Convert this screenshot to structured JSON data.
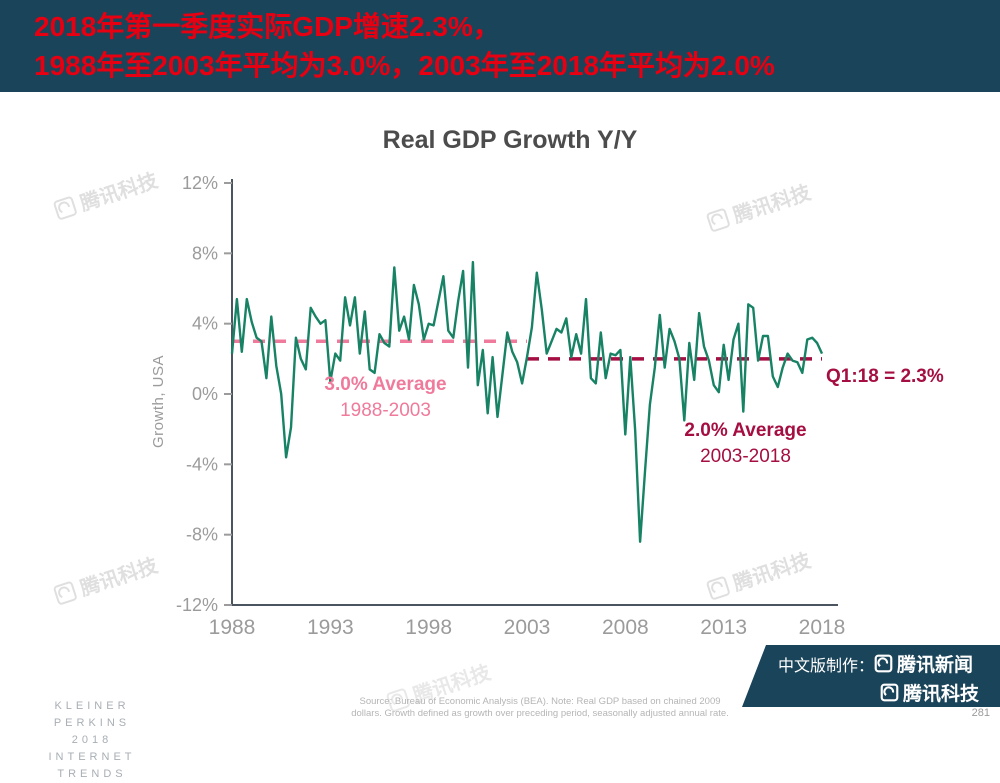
{
  "banner": {
    "line1": "2018年第一季度实际GDP增速2.3%，",
    "line2": "1988年至2003年平均为3.0%，2003年至2018年平均为2.0%"
  },
  "chart": {
    "title": "Real GDP Growth Y/Y",
    "ylabel": "Growth, USA",
    "annotations": {
      "avg1_line1": "3.0% Average",
      "avg1_line2": "1988-2003",
      "avg2_line1": "2.0% Average",
      "avg2_line2": "2003-2018",
      "latest": "Q1:18 = 2.3%"
    }
  },
  "chart_data": {
    "type": "line",
    "title": "Real GDP Growth Y/Y",
    "xlabel": "",
    "ylabel": "Growth, USA",
    "xlim": [
      1988,
      2018
    ],
    "ylim": [
      -12,
      12
    ],
    "x_start": 1988.0,
    "x_step": 0.25,
    "x_unit": "quarterly (year.quarter fraction)",
    "xticks": [
      1988,
      1993,
      1998,
      2003,
      2008,
      2013,
      2018
    ],
    "ytick_values": [
      12,
      8,
      4,
      0,
      -4,
      -8,
      -12
    ],
    "yticks": [
      "12%",
      "8%",
      "4%",
      "0%",
      "-4%",
      "-8%",
      "-12%"
    ],
    "grid": false,
    "series": [
      {
        "name": "US Real GDP growth, quarterly, seasonally adjusted annual rate (%)",
        "color": "#178264",
        "values": [
          2.3,
          5.4,
          2.4,
          5.4,
          4.1,
          3.2,
          3.0,
          0.9,
          4.4,
          1.6,
          0.0,
          -3.6,
          -1.9,
          3.2,
          2.0,
          1.4,
          4.9,
          4.4,
          4.0,
          4.2,
          0.7,
          2.3,
          1.9,
          5.5,
          3.9,
          5.5,
          2.3,
          4.7,
          1.4,
          1.2,
          3.4,
          2.9,
          2.7,
          7.2,
          3.6,
          4.4,
          3.1,
          6.2,
          5.1,
          3.1,
          4.0,
          3.9,
          5.3,
          6.7,
          3.6,
          3.2,
          5.3,
          7.0,
          1.5,
          7.5,
          0.5,
          2.5,
          -1.1,
          2.1,
          -1.3,
          1.1,
          3.5,
          2.4,
          1.8,
          0.6,
          2.1,
          3.8,
          6.9,
          4.8,
          2.3,
          3.0,
          3.7,
          3.5,
          4.3,
          2.1,
          3.4,
          2.3,
          5.4,
          0.9,
          0.6,
          3.5,
          0.9,
          2.3,
          2.2,
          2.5,
          -2.3,
          2.1,
          -2.1,
          -8.4,
          -4.4,
          -0.6,
          1.5,
          4.5,
          1.5,
          3.7,
          3.0,
          2.0,
          -1.5,
          2.9,
          0.8,
          4.6,
          2.7,
          1.9,
          0.5,
          0.1,
          2.8,
          0.8,
          3.1,
          4.0,
          -1.0,
          5.1,
          4.9,
          1.9,
          3.3,
          3.3,
          1.0,
          0.4,
          1.5,
          2.3,
          1.9,
          1.8,
          1.2,
          3.1,
          3.2,
          2.9,
          2.3
        ]
      }
    ],
    "reference_lines": [
      {
        "label": "3.0% Average 1988-2003",
        "value": 3.0,
        "x_range": [
          1988,
          2003
        ],
        "color": "#ef7a9b"
      },
      {
        "label": "2.0% Average 2003-2018",
        "value": 2.0,
        "x_range": [
          2003,
          2018
        ],
        "color": "#a50e42"
      }
    ],
    "latest_point": {
      "x": 2018.0,
      "value": 2.3,
      "label": "Q1:18 = 2.3%"
    },
    "legend": "none"
  },
  "watermark": {
    "text": "腾讯科技"
  },
  "footer": {
    "brand_line1": "KLEINER PERKINS",
    "brand_line2": "2018",
    "brand_line3": "INTERNET TRENDS",
    "source_line1": "Source: Bureau of Economic Analysis (BEA).  Note: Real GDP based on chained 2009",
    "source_line2": "dollars. Growth defined as growth over preceding period, seasonally adjusted annual rate.",
    "credit_prefix": "中文版制作：",
    "credit_item1": "腾讯新闻",
    "credit_item2": "腾讯科技",
    "page_number": "281"
  },
  "colors": {
    "banner_bg": "#1a4459",
    "banner_text": "#e60012",
    "series_green": "#178264",
    "avg_pink": "#ef7a9b",
    "avg_crimson": "#a50e42",
    "axis": "#4a5560",
    "tick_text": "#9b9b9b",
    "watermark": "#c6c6c6"
  }
}
